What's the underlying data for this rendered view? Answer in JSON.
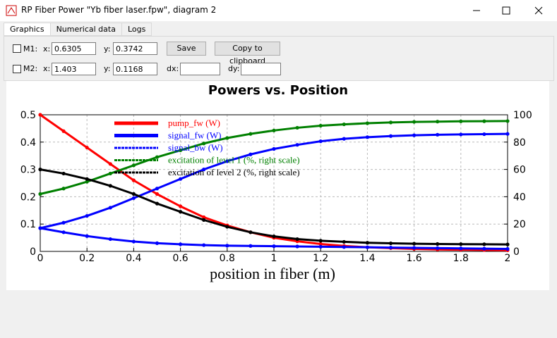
{
  "window": {
    "title": "RP Fiber Power \"Yb fiber laser.fpw\", diagram 2"
  },
  "tabs": [
    "Graphics",
    "Numerical data",
    "Logs"
  ],
  "markers": [
    {
      "label": "M1:",
      "x_label": "x:",
      "x": 0.6305,
      "y_label": "y:",
      "y": 0.3742
    },
    {
      "label": "M2:",
      "x_label": "x:",
      "x": 1.403,
      "y_label": "y:",
      "y": 0.1168
    }
  ],
  "buttons": [
    "Save",
    "Copy to clipboard"
  ],
  "delta_labels": [
    "dx:",
    "dy:"
  ],
  "chart_data": {
    "type": "line",
    "title": "Powers vs. Position",
    "x_label": "position in fiber (m)",
    "x": [
      0,
      0.1,
      0.2,
      0.3,
      0.4,
      0.5,
      0.6,
      0.7,
      0.8,
      0.9,
      1,
      1.1,
      1.2,
      1.3,
      1.4,
      1.5,
      1.6,
      1.7,
      1.8,
      1.9,
      2
    ],
    "xlim": [
      0,
      2
    ],
    "xticks": [
      0,
      0.2,
      0.4,
      0.6,
      0.8,
      1,
      1.2,
      1.4,
      1.6,
      1.8,
      2
    ],
    "ylim": [
      0,
      0.5
    ],
    "yticks": [
      0,
      0.1,
      0.2,
      0.3,
      0.4,
      0.5
    ],
    "y2lim": [
      0,
      100
    ],
    "y2ticks": [
      0,
      20,
      40,
      60,
      80,
      100
    ],
    "grid": true,
    "legend": "upper left",
    "series": [
      {
        "name": "pump_fw (W)",
        "color": "#ff0000",
        "values": [
          0.5,
          0.44,
          0.38,
          0.32,
          0.26,
          0.21,
          0.165,
          0.125,
          0.095,
          0.07,
          0.05,
          0.037,
          0.027,
          0.02,
          0.015,
          0.012,
          0.009,
          0.007,
          0.006,
          0.005,
          0.004
        ]
      },
      {
        "name": "signal_fw (W)",
        "color": "#0000ff",
        "values": [
          0.085,
          0.105,
          0.13,
          0.16,
          0.195,
          0.23,
          0.265,
          0.3,
          0.33,
          0.355,
          0.375,
          0.39,
          0.403,
          0.412,
          0.418,
          0.422,
          0.425,
          0.427,
          0.428,
          0.429,
          0.43
        ]
      },
      {
        "name": "signal_bw (W)",
        "color": "#0000ff",
        "values": [
          0.085,
          0.07,
          0.056,
          0.045,
          0.036,
          0.03,
          0.026,
          0.023,
          0.021,
          0.02,
          0.019,
          0.018,
          0.017,
          0.016,
          0.015,
          0.014,
          0.013,
          0.012,
          0.011,
          0.01,
          0.009
        ]
      },
      {
        "name": "excitation of level 1 (%, right scale)",
        "color": "#008000",
        "axis": "y2",
        "values": [
          42,
          46,
          51,
          57,
          63,
          69,
          74,
          79,
          83,
          86,
          88.5,
          90.5,
          92,
          93,
          93.8,
          94.4,
          94.8,
          95,
          95.2,
          95.3,
          95.4
        ]
      },
      {
        "name": "excitation of level 2 (%, right scale)",
        "color": "#000000",
        "axis": "y2",
        "values": [
          60,
          57,
          53,
          48,
          42,
          35,
          29,
          23,
          18,
          14,
          11,
          9,
          7.8,
          7,
          6.3,
          5.9,
          5.6,
          5.4,
          5.3,
          5.2,
          5.1
        ]
      }
    ]
  }
}
